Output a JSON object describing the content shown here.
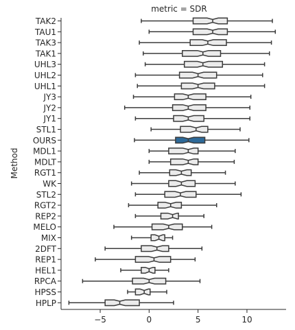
{
  "chart_data": {
    "type": "boxplot",
    "title": "metric = SDR",
    "xlabel": "",
    "ylabel": "Method",
    "xlim": [
      -9,
      14
    ],
    "xticks": [
      -5,
      0,
      5,
      10
    ],
    "grid": false,
    "legend": "none",
    "box_fill": "#ebebeb",
    "highlight_fill": "#2e6a99",
    "line_color": "#3b3b3b",
    "series": [
      {
        "name": "TAK2",
        "whislo": -0.8,
        "q1": 4.5,
        "med": 6.5,
        "q3": 8.0,
        "whishi": 12.6
      },
      {
        "name": "TAU1",
        "whislo": 0.0,
        "q1": 4.5,
        "med": 6.5,
        "q3": 8.0,
        "whishi": 12.9
      },
      {
        "name": "TAK3",
        "whislo": -1.0,
        "q1": 4.2,
        "med": 6.0,
        "q3": 7.9,
        "whishi": 12.5
      },
      {
        "name": "TAK1",
        "whislo": -0.6,
        "q1": 3.4,
        "med": 5.5,
        "q3": 7.3,
        "whishi": 12.3
      },
      {
        "name": "UHL3",
        "whislo": -0.4,
        "q1": 3.6,
        "med": 5.5,
        "q3": 7.5,
        "whishi": 11.8
      },
      {
        "name": "UHL2",
        "whislo": -1.4,
        "q1": 3.1,
        "med": 5.0,
        "q3": 6.9,
        "whishi": 11.6
      },
      {
        "name": "UHL1",
        "whislo": -1.2,
        "q1": 3.3,
        "med": 5.0,
        "q3": 6.7,
        "whishi": 11.8
      },
      {
        "name": "JY3",
        "whislo": -1.6,
        "q1": 2.6,
        "med": 4.0,
        "q3": 5.8,
        "whishi": 10.4
      },
      {
        "name": "JY2",
        "whislo": -2.5,
        "q1": 2.4,
        "med": 4.0,
        "q3": 5.8,
        "whishi": 10.3
      },
      {
        "name": "JY1",
        "whislo": -1.4,
        "q1": 2.5,
        "med": 4.0,
        "q3": 5.6,
        "whishi": 10.3
      },
      {
        "name": "STL1",
        "whislo": 0.2,
        "q1": 3.2,
        "med": 4.8,
        "q3": 6.0,
        "whishi": 9.3
      },
      {
        "name": "OURS",
        "whislo": -1.5,
        "q1": 2.7,
        "med": 4.0,
        "q3": 5.7,
        "whishi": 10.2,
        "highlight": true
      },
      {
        "name": "MDL1",
        "whislo": 0.0,
        "q1": 2.0,
        "med": 4.0,
        "q3": 5.0,
        "whishi": 8.8
      },
      {
        "name": "MDLT",
        "whislo": 0.0,
        "q1": 2.2,
        "med": 4.0,
        "q3": 5.0,
        "whishi": 8.7
      },
      {
        "name": "RGT1",
        "whislo": -1.0,
        "q1": 2.1,
        "med": 3.3,
        "q3": 4.3,
        "whishi": 7.8
      },
      {
        "name": "WK",
        "whislo": -1.8,
        "q1": 2.0,
        "med": 3.3,
        "q3": 4.7,
        "whishi": 8.8
      },
      {
        "name": "STL2",
        "whislo": -1.4,
        "q1": 1.6,
        "med": 3.2,
        "q3": 4.8,
        "whishi": 9.4
      },
      {
        "name": "RGT2",
        "whislo": -2.1,
        "q1": 0.9,
        "med": 2.2,
        "q3": 3.3,
        "whishi": 6.9
      },
      {
        "name": "REP2",
        "whislo": -1.4,
        "q1": 1.2,
        "med": 2.4,
        "q3": 3.0,
        "whishi": 5.6
      },
      {
        "name": "MELO",
        "whislo": -3.6,
        "q1": 0.3,
        "med": 2.0,
        "q3": 3.4,
        "whishi": 6.4
      },
      {
        "name": "MIX",
        "whislo": -1.8,
        "q1": 0.2,
        "med": 1.0,
        "q3": 1.6,
        "whishi": 2.4
      },
      {
        "name": "2DFT",
        "whislo": -4.5,
        "q1": -0.8,
        "med": 0.8,
        "q3": 2.0,
        "whishi": 5.4
      },
      {
        "name": "REP1",
        "whislo": -5.5,
        "q1": -1.4,
        "med": 0.5,
        "q3": 2.2,
        "whishi": 4.7
      },
      {
        "name": "HEL1",
        "whislo": -2.9,
        "q1": -0.8,
        "med": 0.0,
        "q3": 0.6,
        "whishi": 2.0
      },
      {
        "name": "RPCA",
        "whislo": -6.8,
        "q1": -1.7,
        "med": 0.0,
        "q3": 1.7,
        "whishi": 5.2
      },
      {
        "name": "HPSS",
        "whislo": -2.2,
        "q1": -1.4,
        "med": -0.5,
        "q3": 0.1,
        "whishi": 1.8
      },
      {
        "name": "HPLP",
        "whislo": -8.2,
        "q1": -4.5,
        "med": -3.0,
        "q3": -1.0,
        "whishi": 2.5
      }
    ]
  }
}
